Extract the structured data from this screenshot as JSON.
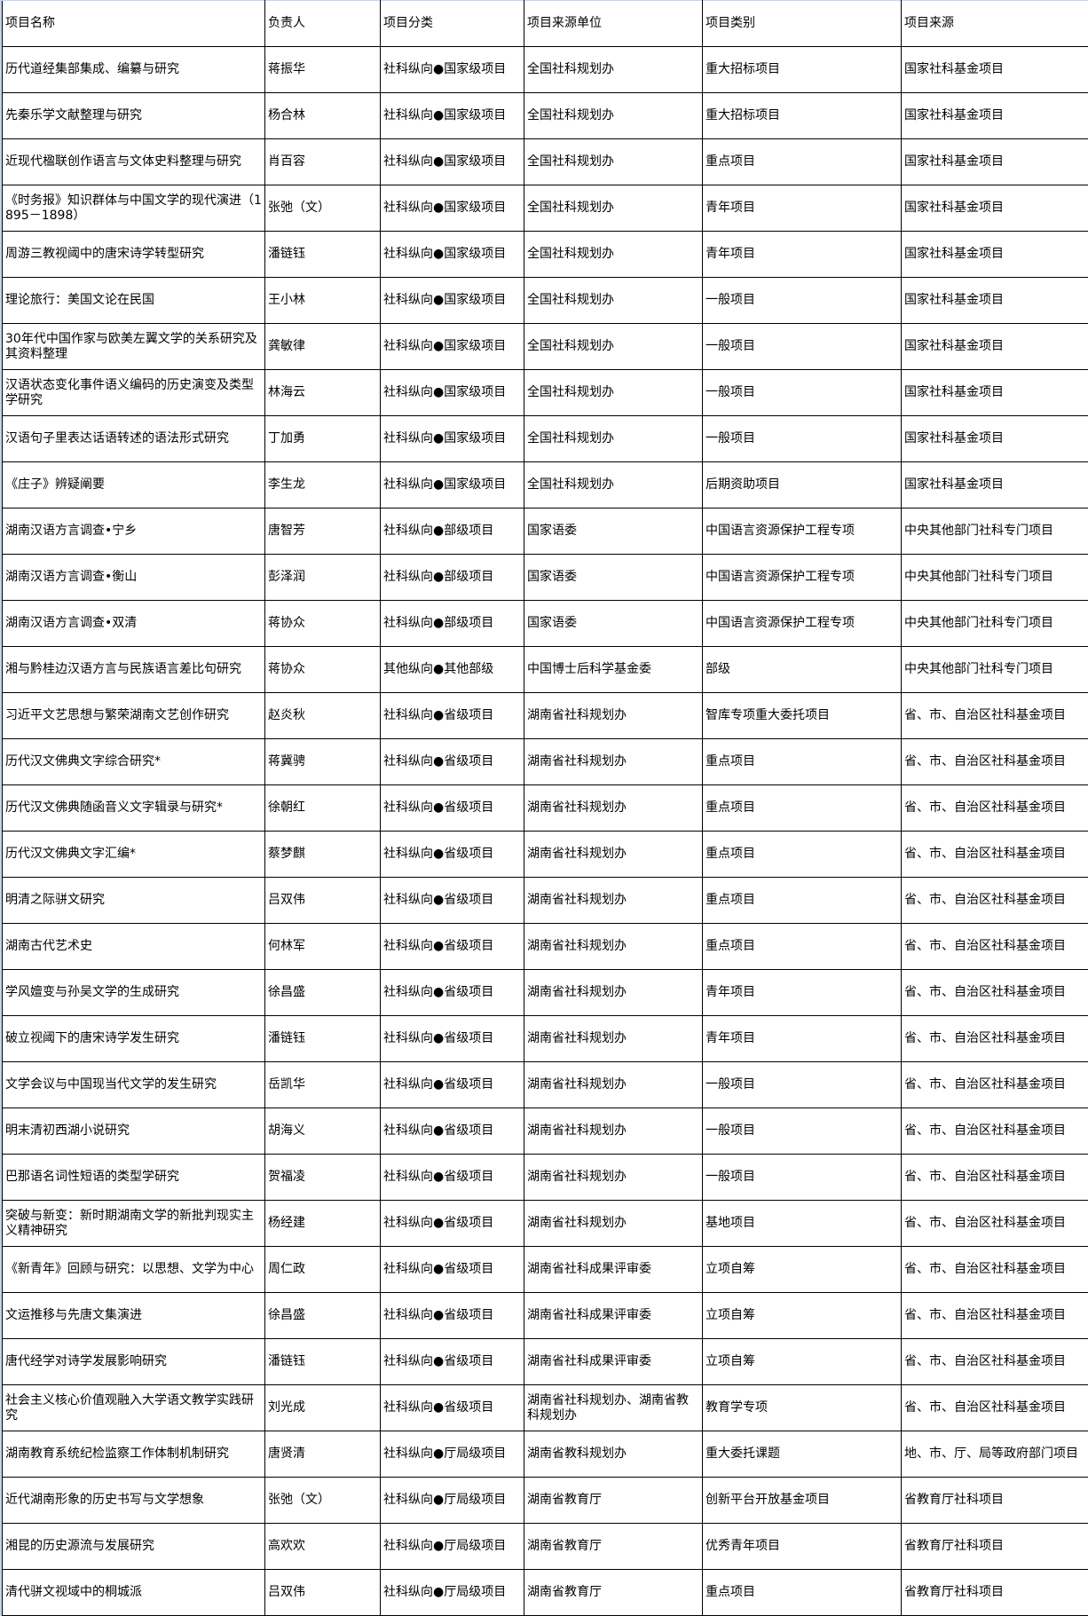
{
  "table": {
    "headers": [
      "项目名称",
      "负责人",
      "项目分类",
      "项目来源单位",
      "项目类别",
      "项目来源"
    ],
    "rows": [
      [
        "历代道经集部集成、编纂与研究",
        "蒋振华",
        "社科纵向●国家级项目",
        "全国社科规划办",
        "重大招标项目",
        "国家社科基金项目"
      ],
      [
        "先秦乐学文献整理与研究",
        "杨合林",
        "社科纵向●国家级项目",
        "全国社科规划办",
        "重大招标项目",
        "国家社科基金项目"
      ],
      [
        "近现代楹联创作语言与文体史料整理与研究",
        "肖百容",
        "社科纵向●国家级项目",
        "全国社科规划办",
        "重点项目",
        "国家社科基金项目"
      ],
      [
        "《时务报》知识群体与中国文学的现代演进（1895－1898）",
        "张弛（文）",
        "社科纵向●国家级项目",
        "全国社科规划办",
        "青年项目",
        "国家社科基金项目"
      ],
      [
        "周游三教视阈中的唐宋诗学转型研究",
        "潘链钰",
        "社科纵向●国家级项目",
        "全国社科规划办",
        "青年项目",
        "国家社科基金项目"
      ],
      [
        "理论旅行：美国文论在民国",
        "王小林",
        "社科纵向●国家级项目",
        "全国社科规划办",
        "一般项目",
        "国家社科基金项目"
      ],
      [
        "30年代中国作家与欧美左翼文学的关系研究及其资料整理",
        "龚敏律",
        "社科纵向●国家级项目",
        "全国社科规划办",
        "一般项目",
        "国家社科基金项目"
      ],
      [
        "汉语状态变化事件语义编码的历史演变及类型学研究",
        "林海云",
        "社科纵向●国家级项目",
        "全国社科规划办",
        "一般项目",
        "国家社科基金项目"
      ],
      [
        "汉语句子里表达话语转述的语法形式研究",
        "丁加勇",
        "社科纵向●国家级项目",
        "全国社科规划办",
        "一般项目",
        "国家社科基金项目"
      ],
      [
        "《庄子》辨疑阐要",
        "李生龙",
        "社科纵向●国家级项目",
        "全国社科规划办",
        "后期资助项目",
        "国家社科基金项目"
      ],
      [
        "湖南汉语方言调查•宁乡",
        "唐智芳",
        "社科纵向●部级项目",
        "国家语委",
        "中国语言资源保护工程专项",
        "中央其他部门社科专门项目"
      ],
      [
        "湖南汉语方言调查•衡山",
        "彭泽润",
        "社科纵向●部级项目",
        "国家语委",
        "中国语言资源保护工程专项",
        "中央其他部门社科专门项目"
      ],
      [
        "湖南汉语方言调查•双清",
        "蒋协众",
        "社科纵向●部级项目",
        "国家语委",
        "中国语言资源保护工程专项",
        "中央其他部门社科专门项目"
      ],
      [
        "湘与黔桂边汉语方言与民族语言差比句研究",
        "蒋协众",
        "其他纵向●其他部级",
        "中国博士后科学基金委",
        "部级",
        "中央其他部门社科专门项目"
      ],
      [
        "习近平文艺思想与繁荣湖南文艺创作研究",
        "赵炎秋",
        "社科纵向●省级项目",
        "湖南省社科规划办",
        "智库专项重大委托项目",
        "省、市、自治区社科基金项目"
      ],
      [
        "历代汉文佛典文字综合研究*",
        "蒋冀骋",
        "社科纵向●省级项目",
        "湖南省社科规划办",
        "重点项目",
        "省、市、自治区社科基金项目"
      ],
      [
        "历代汉文佛典随函音义文字辑录与研究*",
        "徐朝红",
        "社科纵向●省级项目",
        "湖南省社科规划办",
        "重点项目",
        "省、市、自治区社科基金项目"
      ],
      [
        "历代汉文佛典文字汇编*",
        "蔡梦麒",
        "社科纵向●省级项目",
        "湖南省社科规划办",
        "重点项目",
        "省、市、自治区社科基金项目"
      ],
      [
        "明清之际骈文研究",
        "吕双伟",
        "社科纵向●省级项目",
        "湖南省社科规划办",
        "重点项目",
        "省、市、自治区社科基金项目"
      ],
      [
        "湖南古代艺术史",
        "何林军",
        "社科纵向●省级项目",
        "湖南省社科规划办",
        "重点项目",
        "省、市、自治区社科基金项目"
      ],
      [
        "学风嬗变与孙吴文学的生成研究",
        "徐昌盛",
        "社科纵向●省级项目",
        "湖南省社科规划办",
        "青年项目",
        "省、市、自治区社科基金项目"
      ],
      [
        "破立视阈下的唐宋诗学发生研究",
        "潘链钰",
        "社科纵向●省级项目",
        "湖南省社科规划办",
        "青年项目",
        "省、市、自治区社科基金项目"
      ],
      [
        "文学会议与中国现当代文学的发生研究",
        "岳凯华",
        "社科纵向●省级项目",
        "湖南省社科规划办",
        "一般项目",
        "省、市、自治区社科基金项目"
      ],
      [
        "明末清初西湖小说研究",
        "胡海义",
        "社科纵向●省级项目",
        "湖南省社科规划办",
        "一般项目",
        "省、市、自治区社科基金项目"
      ],
      [
        "巴那语名词性短语的类型学研究",
        "贺福凌",
        "社科纵向●省级项目",
        "湖南省社科规划办",
        "一般项目",
        "省、市、自治区社科基金项目"
      ],
      [
        "突破与新变：新时期湖南文学的新批判现实主义精神研究",
        "杨经建",
        "社科纵向●省级项目",
        "湖南省社科规划办",
        "基地项目",
        "省、市、自治区社科基金项目"
      ],
      [
        "《新青年》回顾与研究：以思想、文学为中心",
        "周仁政",
        "社科纵向●省级项目",
        "湖南省社科成果评审委",
        "立项自筹",
        "省、市、自治区社科基金项目"
      ],
      [
        "文运推移与先唐文集演进",
        "徐昌盛",
        "社科纵向●省级项目",
        "湖南省社科成果评审委",
        "立项自筹",
        "省、市、自治区社科基金项目"
      ],
      [
        "唐代经学对诗学发展影响研究",
        "潘链钰",
        "社科纵向●省级项目",
        "湖南省社科成果评审委",
        "立项自筹",
        "省、市、自治区社科基金项目"
      ],
      [
        "社会主义核心价值观融入大学语文教学实践研究",
        "刘光成",
        "社科纵向●省级项目",
        "湖南省社科规划办、湖南省教科规划办",
        "教育学专项",
        "省、市、自治区社科基金项目"
      ],
      [
        "湖南教育系统纪检监察工作体制机制研究",
        "唐贤清",
        "社科纵向●厅局级项目",
        "湖南省教科规划办",
        "重大委托课题",
        "地、市、厅、局等政府部门项目"
      ],
      [
        "近代湖南形象的历史书写与文学想象",
        "张弛（文）",
        "社科纵向●厅局级项目",
        "湖南省教育厅",
        "创新平台开放基金项目",
        "省教育厅社科项目"
      ],
      [
        "湘昆的历史源流与发展研究",
        "高欢欢",
        "社科纵向●厅局级项目",
        "湖南省教育厅",
        "优秀青年项目",
        "省教育厅社科项目"
      ],
      [
        "清代骈文视域中的桐城派",
        "吕双伟",
        "社科纵向●厅局级项目",
        "湖南省教育厅",
        "重点项目",
        "省教育厅社科项目"
      ]
    ]
  }
}
